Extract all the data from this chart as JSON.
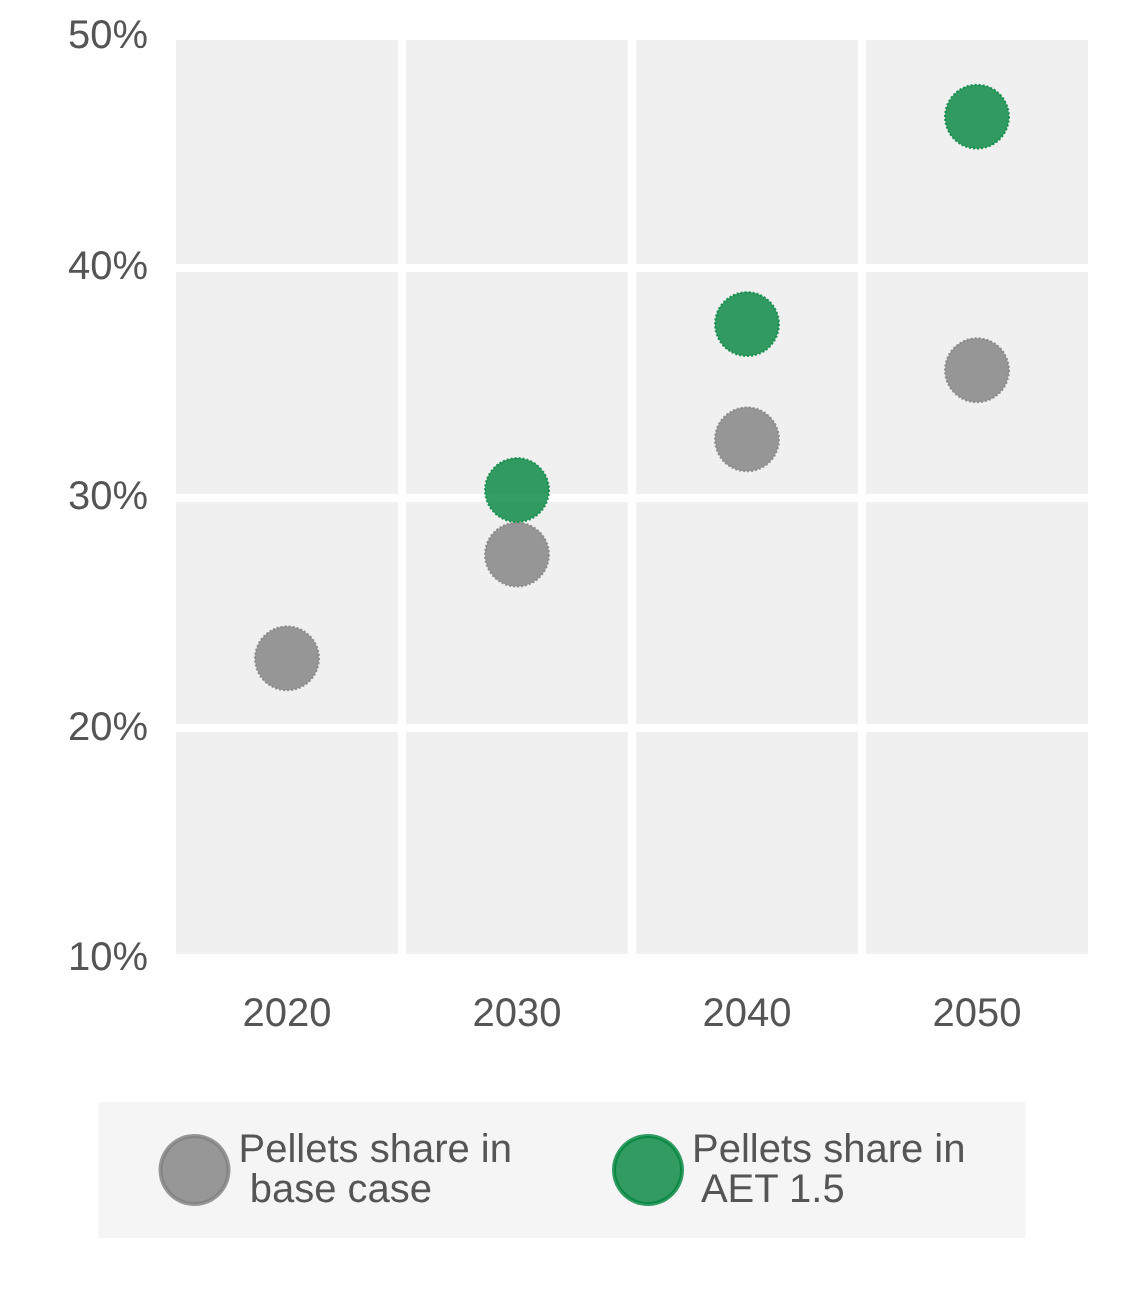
{
  "chart_data": {
    "type": "scatter",
    "categories": [
      "2020",
      "2030",
      "2040",
      "2050"
    ],
    "series": [
      {
        "name": "Pellets share in base case",
        "color": "#808080",
        "values": [
          23,
          27.5,
          32.5,
          35.5
        ]
      },
      {
        "name": "Pellets share in AET 1.5",
        "color": "#00843d",
        "values": [
          null,
          30.3,
          37.5,
          46.5
        ]
      }
    ],
    "ylim": [
      10,
      50
    ],
    "yticks": [
      {
        "value": 10,
        "label": "10%"
      },
      {
        "value": 20,
        "label": "20%"
      },
      {
        "value": 30,
        "label": "30%"
      },
      {
        "value": 40,
        "label": "40%"
      },
      {
        "value": 50,
        "label": "50%"
      }
    ],
    "grid": true,
    "legend": "bottom",
    "marker": "circle"
  }
}
